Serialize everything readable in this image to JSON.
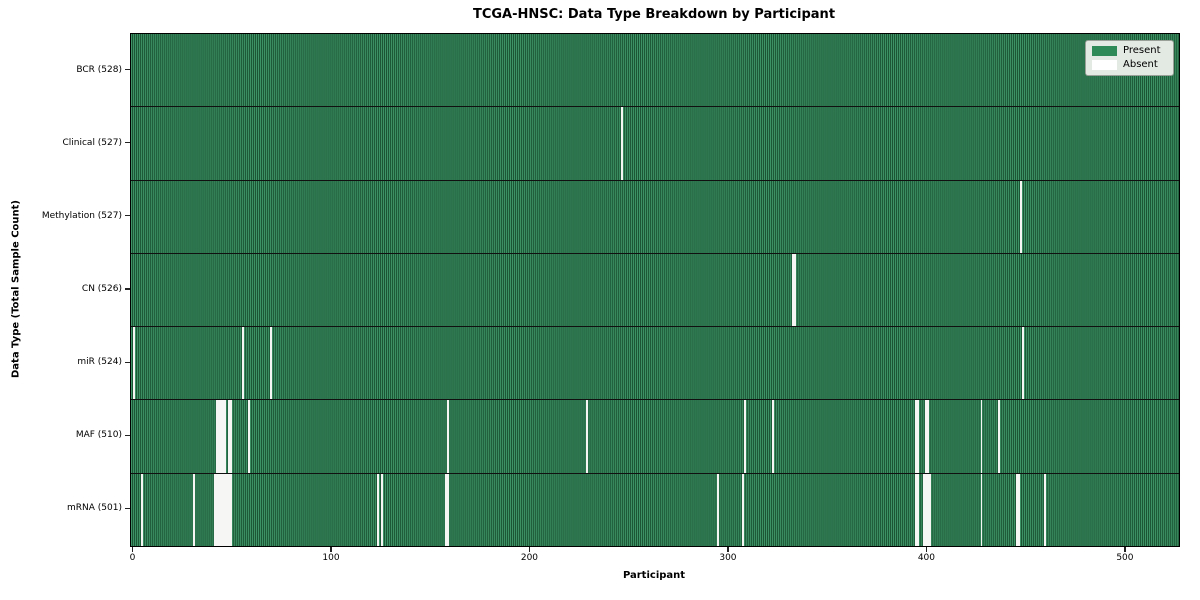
{
  "chart_data": {
    "type": "heatmap",
    "title": "TCGA-HNSC: Data Type Breakdown by Participant",
    "xlabel": "Participant",
    "ylabel": "Data Type (Total Sample Count)",
    "n_participants": 528,
    "xlim": [
      -0.5,
      527.5
    ],
    "x_ticks": [
      0,
      100,
      200,
      300,
      400,
      500
    ],
    "grid": false,
    "legend_position": "upper right",
    "legend": [
      {
        "label": "Present",
        "color": "#2e8b57"
      },
      {
        "label": "Absent",
        "color": "#ffffff"
      }
    ],
    "colors": {
      "present_light": "#3e9466",
      "present_dark": "#1b5434",
      "absent": "#f6f6f4"
    },
    "rows": [
      {
        "label": "BCR (528)",
        "name": "bcr",
        "count": 528,
        "absent": []
      },
      {
        "label": "Clinical (527)",
        "name": "clinical",
        "count": 527,
        "absent": [
          247
        ]
      },
      {
        "label": "Methylation (527)",
        "name": "methylation",
        "count": 527,
        "absent": [
          448
        ]
      },
      {
        "label": "CN (526)",
        "name": "cn",
        "count": 526,
        "absent": [
          333,
          334
        ]
      },
      {
        "label": "miR (524)",
        "name": "mir",
        "count": 524,
        "absent": [
          1,
          56,
          70,
          449
        ]
      },
      {
        "label": "MAF (510)",
        "name": "maf",
        "count": 510,
        "absent": [
          43,
          44,
          45,
          46,
          47,
          49,
          50,
          59,
          159,
          229,
          309,
          323,
          395,
          396,
          400,
          401,
          428,
          437
        ]
      },
      {
        "label": "mRNA (501)",
        "name": "mrna",
        "count": 501,
        "absent": [
          5,
          31,
          42,
          43,
          44,
          45,
          46,
          47,
          48,
          49,
          50,
          124,
          126,
          158,
          159,
          295,
          308,
          395,
          396,
          399,
          400,
          401,
          402,
          428,
          446,
          447,
          460
        ]
      }
    ]
  }
}
